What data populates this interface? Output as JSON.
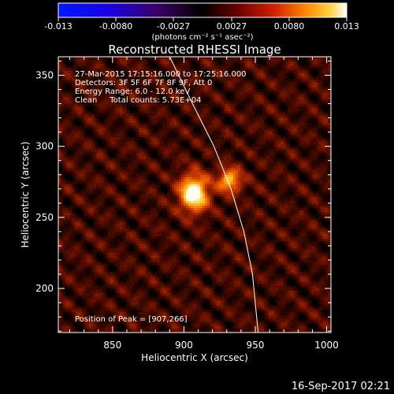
{
  "chart_data": {
    "type": "heatmap",
    "title": "Reconstructed RHESSI Image",
    "xlabel": "Heliocentric X (arcsec)",
    "ylabel": "Heliocentric Y (arcsec)",
    "xlim": [
      812,
      1003
    ],
    "ylim": [
      169,
      363
    ],
    "xticks": [
      850,
      900,
      950,
      1000
    ],
    "yticks": [
      200,
      250,
      300,
      350
    ],
    "colorbar": {
      "range": [
        -0.013,
        0.013
      ],
      "ticks": [
        "-0.013",
        "-0.0080",
        "-0.0027",
        "0.0027",
        "0.0080",
        "0.013"
      ],
      "unit": "(photons cm⁻² s⁻¹ asec⁻²)"
    },
    "annotations": [
      "27-Mar-2015 17:15:16.000 to 17:25:16.000",
      "Detectors: 3F 5F 6F 7F 8F 9F, Att 0",
      "Energy Range: 6.0 - 12.0 keV",
      "Clean     Total counts: 5.73E+04"
    ],
    "peak_label": "Position of Peak = [907,266]",
    "peak": [
      907,
      266
    ],
    "sources": [
      {
        "x": 907,
        "y": 267,
        "sx": 7,
        "sy": 9,
        "amp": 1.0
      },
      {
        "x": 932,
        "y": 276,
        "sx": 6,
        "sy": 6,
        "amp": 0.68
      }
    ],
    "limb_curve": [
      [
        890,
        363
      ],
      [
        906,
        330
      ],
      [
        921,
        300
      ],
      [
        933,
        270
      ],
      [
        942,
        240
      ],
      [
        948,
        210
      ],
      [
        952,
        169
      ]
    ],
    "timestamp": "16-Sep-2017 02:21"
  }
}
